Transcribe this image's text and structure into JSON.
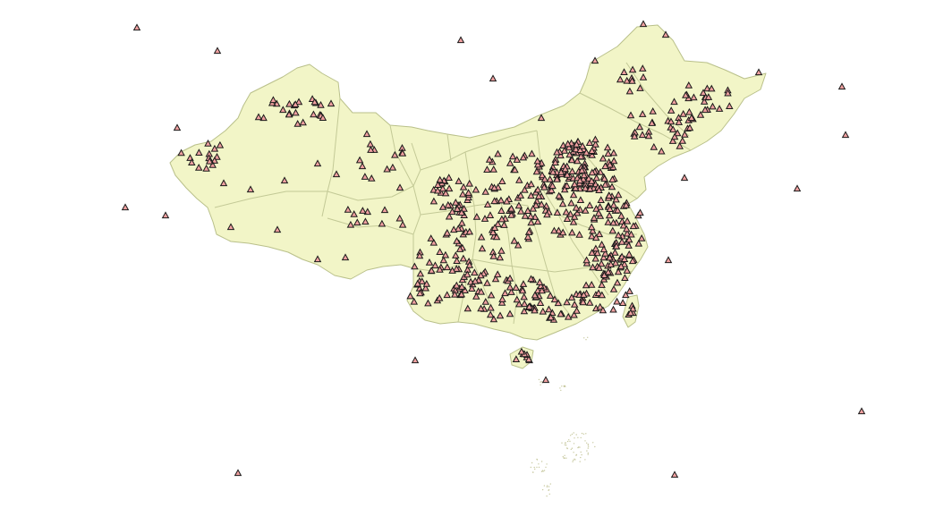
{
  "map": {
    "land_fill": "#f2f5c7",
    "land_stroke": "#b9c08a",
    "marker_fill": "#f0a0a0",
    "marker_stroke": "#1a1a1a",
    "marker_shape": "triangle"
  }
}
